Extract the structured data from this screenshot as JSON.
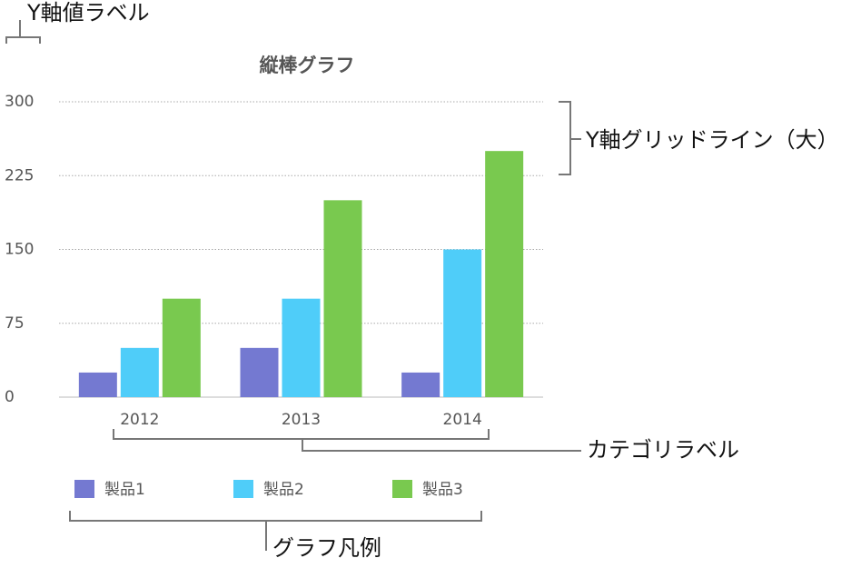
{
  "chart_data": {
    "type": "bar",
    "title": "縦棒グラフ",
    "categories": [
      "2012",
      "2013",
      "2014"
    ],
    "series": [
      {
        "name": "製品1",
        "color": "#7479d1",
        "values": [
          25,
          50,
          25
        ]
      },
      {
        "name": "製品2",
        "color": "#4fcdf9",
        "values": [
          50,
          100,
          150
        ]
      },
      {
        "name": "製品3",
        "color": "#79c94f",
        "values": [
          100,
          200,
          250
        ]
      }
    ],
    "ylim": [
      0,
      300
    ],
    "yticks": [
      0,
      75,
      150,
      225,
      300
    ],
    "grid": true,
    "annotations": [
      "Y軸値ラベル",
      "Y軸グリッドライン（大）",
      "カテゴリラベル",
      "グラフ凡例"
    ]
  }
}
